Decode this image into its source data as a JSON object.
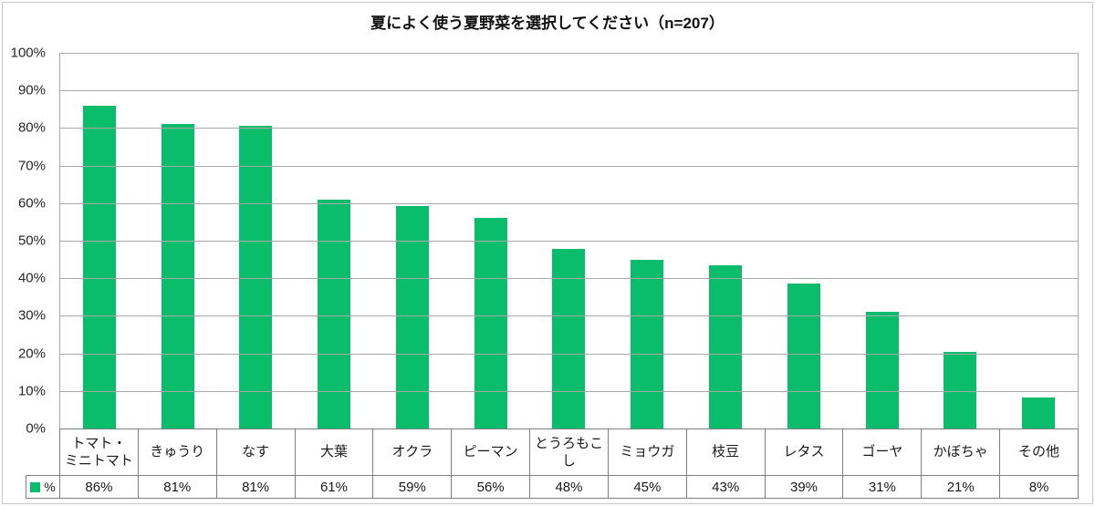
{
  "title": "夏によく使う夏野菜を選択してください（n=207）",
  "legend": {
    "series_label": "%",
    "swatch_color": "#0abd6b"
  },
  "colors": {
    "bar": "#0abd6b",
    "gridline": "#a9a9a9",
    "table_border": "#7f7f7f",
    "outer_frame": "#c9c9c9"
  },
  "chart_data": {
    "type": "bar",
    "title": "夏によく使う夏野菜を選択してください（n=207）",
    "xlabel": "",
    "ylabel": "",
    "ylim": [
      0,
      100
    ],
    "grid": true,
    "legend_position": "bottom-left-of-data-table",
    "bar_color": "#0abd6b",
    "series_name": "%",
    "sample_size": "n=207",
    "categories": [
      "トマト・ミニトマト",
      "きゅうり",
      "なす",
      "大葉",
      "オクラ",
      "ピーマン",
      "とうろもこし",
      "ミョウガ",
      "枝豆",
      "レタス",
      "ゴーヤ",
      "かぼちゃ",
      "その他"
    ],
    "categories_display": [
      "トマト・\nミニトマト",
      "きゅうり",
      "なす",
      "大葉",
      "オクラ",
      "ピーマン",
      "とうろもこし",
      "ミョウガ",
      "枝豆",
      "レタス",
      "ゴーヤ",
      "かぼちゃ",
      "その他"
    ],
    "values": [
      86,
      81,
      81,
      61,
      59,
      56,
      48,
      45,
      43,
      39,
      31,
      21,
      8
    ],
    "value_labels": [
      "86%",
      "81%",
      "81%",
      "61%",
      "59%",
      "56%",
      "48%",
      "45%",
      "43%",
      "39%",
      "31%",
      "21%",
      "8%"
    ],
    "bar_heights_pct": [
      86.0,
      81.0,
      80.5,
      60.9,
      59.3,
      56.0,
      47.8,
      44.8,
      43.4,
      38.5,
      31.0,
      20.5,
      8.2
    ],
    "yticks": [
      {
        "label": "0%",
        "value": 0
      },
      {
        "label": "10%",
        "value": 10
      },
      {
        "label": "20%",
        "value": 20
      },
      {
        "label": "30%",
        "value": 30
      },
      {
        "label": "40%",
        "value": 40
      },
      {
        "label": "50%",
        "value": 50
      },
      {
        "label": "60%",
        "value": 60
      },
      {
        "label": "70%",
        "value": 70
      },
      {
        "label": "80%",
        "value": 80
      },
      {
        "label": "90%",
        "value": 90
      },
      {
        "label": "100%",
        "value": 100
      }
    ]
  }
}
